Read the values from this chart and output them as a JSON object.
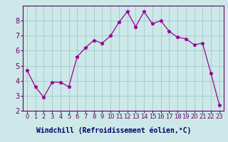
{
  "x": [
    0,
    1,
    2,
    3,
    4,
    5,
    6,
    7,
    8,
    9,
    10,
    11,
    12,
    13,
    14,
    15,
    16,
    17,
    18,
    19,
    20,
    21,
    22,
    23
  ],
  "y": [
    4.7,
    3.6,
    2.9,
    3.9,
    3.9,
    3.6,
    5.6,
    6.2,
    6.7,
    6.5,
    7.0,
    7.9,
    8.6,
    7.6,
    8.6,
    7.8,
    8.0,
    7.3,
    6.9,
    6.8,
    6.4,
    6.5,
    4.5,
    2.4
  ],
  "line_color": "#990099",
  "marker": "*",
  "marker_size": 3.5,
  "bg_color": "#cce8e8",
  "grid_color": "#aacccc",
  "xlabel": "Windchill (Refroidissement éolien,°C)",
  "xlabel_color": "#000066",
  "xlabel_bg": "#8888bb",
  "ylim": [
    2,
    9
  ],
  "xlim": [
    -0.5,
    23.5
  ],
  "yticks": [
    2,
    3,
    4,
    5,
    6,
    7,
    8
  ],
  "ytick_labels": [
    "2",
    "3",
    "4",
    "5",
    "6",
    "7",
    "8"
  ],
  "xtick_labels": [
    "0",
    "1",
    "2",
    "3",
    "4",
    "5",
    "6",
    "7",
    "8",
    "9",
    "10",
    "11",
    "12",
    "13",
    "14",
    "15",
    "16",
    "17",
    "18",
    "19",
    "20",
    "21",
    "22",
    "23"
  ],
  "tick_color": "#660066",
  "spine_color": "#660066",
  "tick_fontsize": 6,
  "ytick_fontsize": 7
}
